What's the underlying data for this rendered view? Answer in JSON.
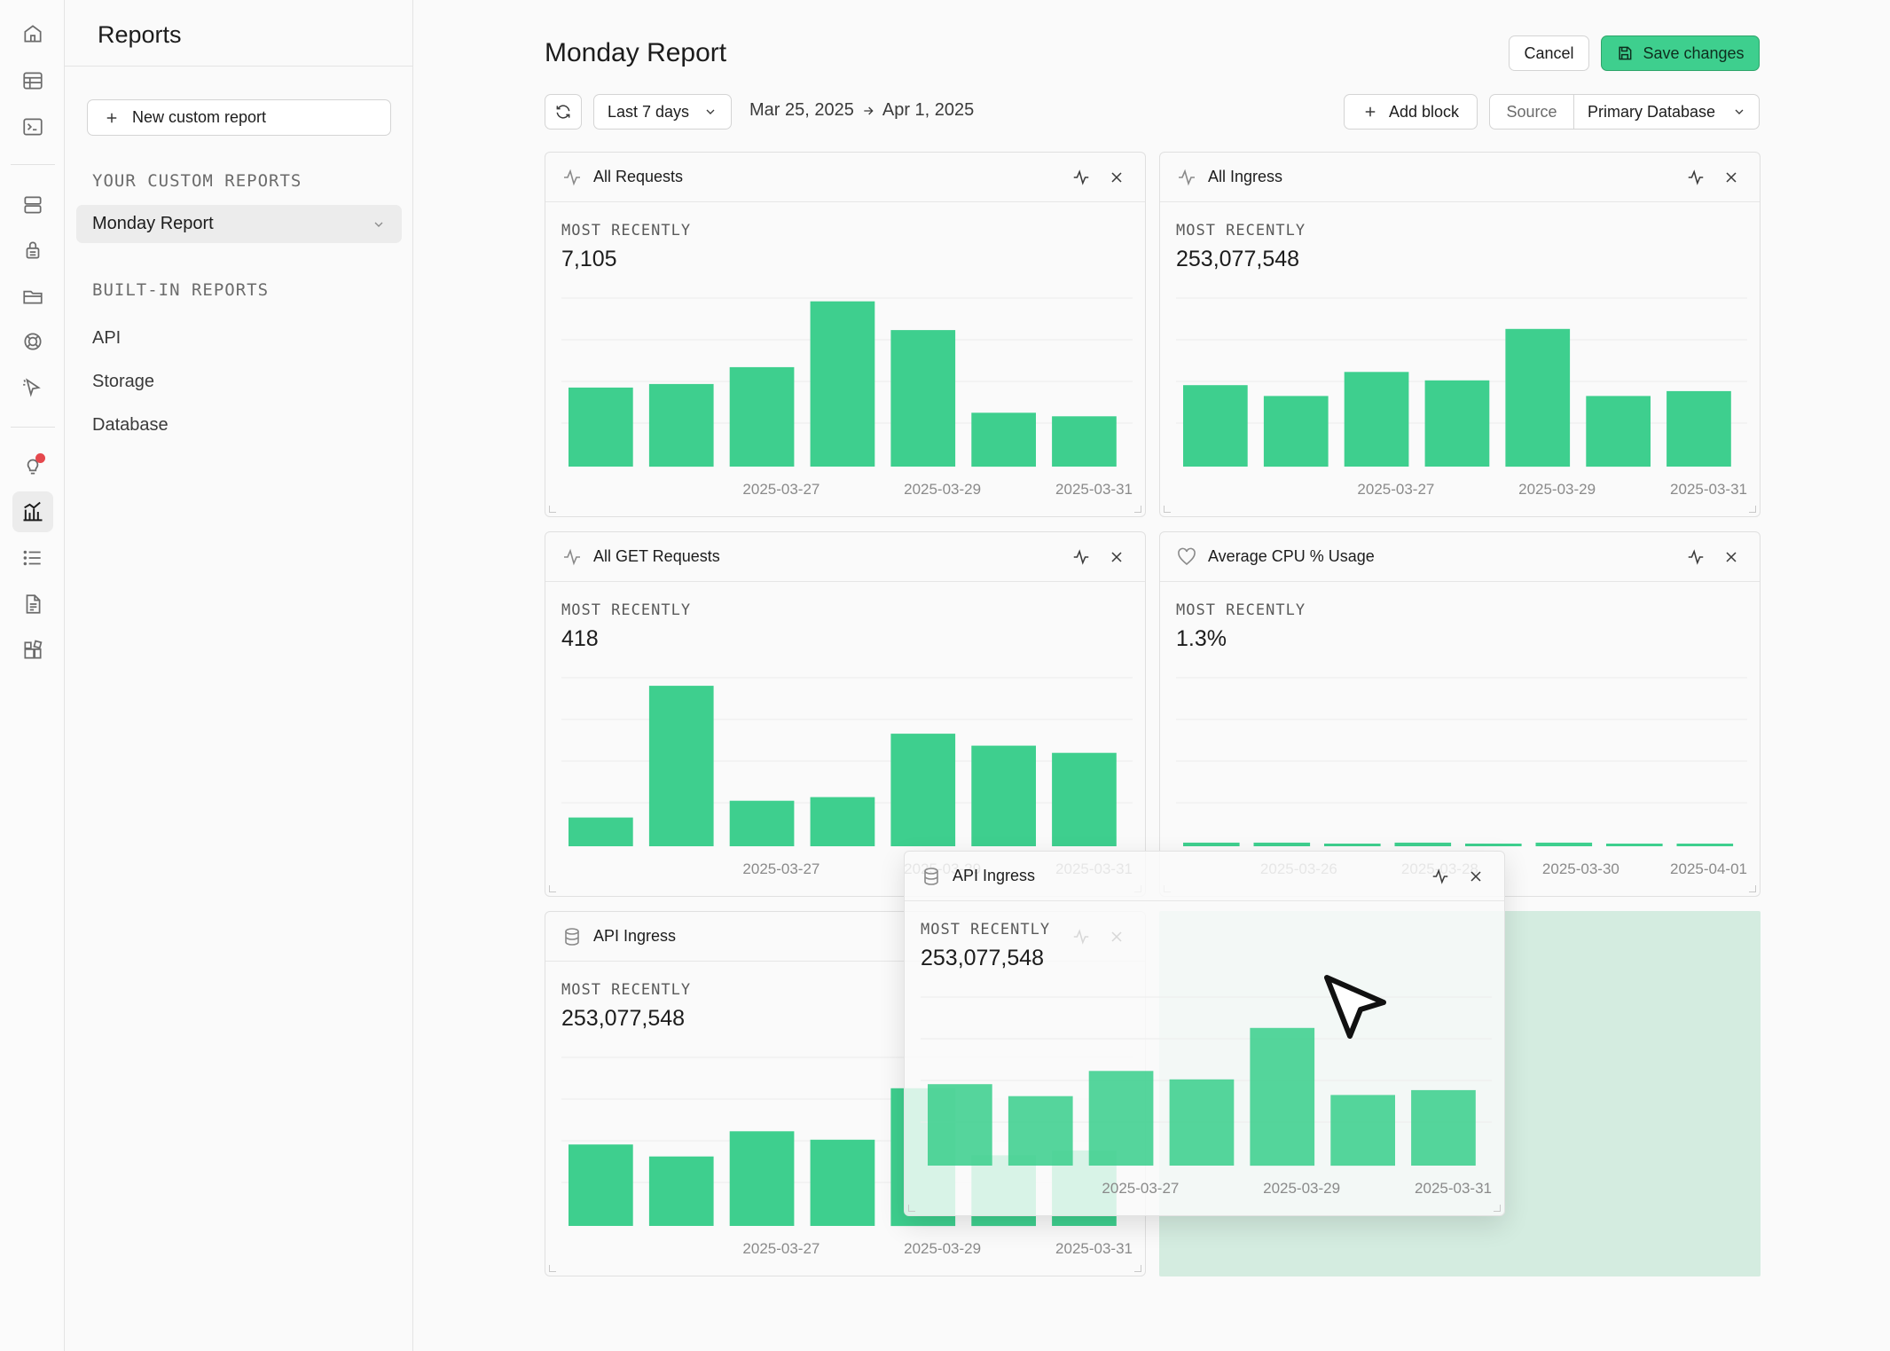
{
  "app": {
    "section_title": "Reports",
    "page_title": "Monday Report"
  },
  "sidebar": {
    "new_report_label": "New custom report",
    "custom_section_label": "YOUR CUSTOM REPORTS",
    "custom_reports": [
      {
        "label": "Monday Report",
        "active": true
      }
    ],
    "builtin_section_label": "BUILT-IN REPORTS",
    "builtin_reports": [
      {
        "label": "API"
      },
      {
        "label": "Storage"
      },
      {
        "label": "Database"
      }
    ]
  },
  "rail": {
    "icons": [
      "home-icon",
      "table-editor-icon",
      "sql-editor-icon",
      "database-icon",
      "auth-lock-icon",
      "storage-icon",
      "realtime-icon",
      "edge-functions-icon",
      "advisors-icon",
      "reports-icon",
      "logs-icon",
      "api-docs-icon",
      "integrations-icon"
    ],
    "active": "reports-icon"
  },
  "header": {
    "cancel_label": "Cancel",
    "save_label": "Save changes"
  },
  "toolbar": {
    "range_label": "Last 7 days",
    "date_start": "Mar 25, 2025",
    "date_end": "Apr 1, 2025",
    "add_block_label": "Add block",
    "source_label": "Source",
    "source_value": "Primary Database"
  },
  "colors": {
    "bar": "#3ecf8e",
    "accent": "#3ecf8e",
    "drop_zone": "#d4ece0"
  },
  "cards": [
    {
      "title": "All Requests",
      "icon": "activity-icon",
      "subtitle": "MOST RECENTLY",
      "value": "7,105",
      "chart_data": {
        "type": "bar",
        "categories": [
          "2025-03-25",
          "2025-03-26",
          "2025-03-27",
          "2025-03-28",
          "2025-03-29",
          "2025-03-30",
          "2025-03-31"
        ],
        "values": [
          66,
          69,
          83,
          138,
          114,
          45,
          42
        ],
        "tick_labels": [
          "2025-03-27",
          "2025-03-29",
          "2025-03-31"
        ],
        "grid": true
      }
    },
    {
      "title": "All Ingress",
      "icon": "activity-icon",
      "subtitle": "MOST RECENTLY",
      "value": "253,077,548",
      "chart_data": {
        "type": "bar",
        "categories": [
          "2025-03-25",
          "2025-03-26",
          "2025-03-27",
          "2025-03-28",
          "2025-03-29",
          "2025-03-30",
          "2025-03-31"
        ],
        "values": [
          68,
          59,
          79,
          72,
          115,
          59,
          63
        ],
        "tick_labels": [
          "2025-03-27",
          "2025-03-29",
          "2025-03-31"
        ],
        "grid": true
      }
    },
    {
      "title": "All GET Requests",
      "icon": "activity-icon",
      "subtitle": "MOST RECENTLY",
      "value": "418",
      "chart_data": {
        "type": "bar",
        "categories": [
          "2025-03-25",
          "2025-03-26",
          "2025-03-27",
          "2025-03-28",
          "2025-03-29",
          "2025-03-30",
          "2025-03-31"
        ],
        "values": [
          24,
          134,
          38,
          41,
          94,
          84,
          78
        ],
        "tick_labels": [
          "2025-03-27",
          "2025-03-29",
          "2025-03-31"
        ],
        "grid": true
      }
    },
    {
      "title": "Average CPU % Usage",
      "icon": "heart-icon",
      "subtitle": "MOST RECENTLY",
      "value": "1.3%",
      "chart_data": {
        "type": "bar",
        "categories": [
          "2025-03-25",
          "2025-03-26",
          "2025-03-27",
          "2025-03-28",
          "2025-03-29",
          "2025-03-30",
          "2025-03-31",
          "2025-04-01"
        ],
        "values": [
          3,
          3,
          2,
          3,
          2,
          3,
          2,
          2
        ],
        "tick_labels": [
          "2025-03-26",
          "2025-03-28",
          "2025-03-30",
          "2025-04-01"
        ],
        "grid": true
      }
    },
    {
      "title": "API Ingress",
      "icon": "database-icon",
      "subtitle": "MOST RECENTLY",
      "value": "253,077,548",
      "chart_data": {
        "type": "bar",
        "categories": [
          "2025-03-25",
          "2025-03-26",
          "2025-03-27",
          "2025-03-28",
          "2025-03-29",
          "2025-03-30",
          "2025-03-31"
        ],
        "values": [
          68,
          58,
          79,
          72,
          115,
          59,
          63
        ],
        "tick_labels": [
          "2025-03-27",
          "2025-03-29",
          "2025-03-31"
        ],
        "grid": true
      }
    },
    {
      "title": "API Ingress",
      "icon": "database-icon",
      "subtitle": "MOST RECENTLY",
      "value": "253,077,548",
      "dragging": true,
      "chart_data": {
        "type": "bar",
        "categories": [
          "2025-03-25",
          "2025-03-26",
          "2025-03-27",
          "2025-03-28",
          "2025-03-29",
          "2025-03-30",
          "2025-03-31"
        ],
        "values": [
          68,
          58,
          79,
          72,
          115,
          59,
          63
        ],
        "tick_labels": [
          "2025-03-27",
          "2025-03-29",
          "2025-03-31"
        ],
        "grid": true
      }
    }
  ]
}
